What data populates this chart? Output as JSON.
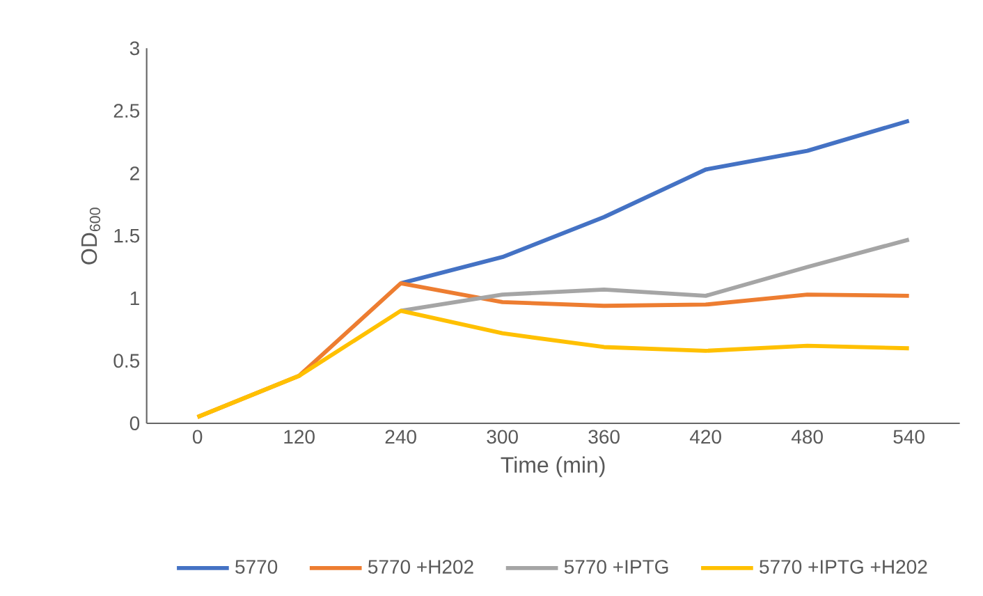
{
  "chart_data": {
    "type": "line",
    "xlabel": "Time (min)",
    "ylabel": "OD$_{600}$",
    "categories": [
      "0",
      "120",
      "240",
      "300",
      "360",
      "420",
      "480",
      "540"
    ],
    "ylim": [
      0,
      3
    ],
    "yticks": [
      0,
      0.5,
      1,
      1.5,
      2,
      2.5,
      3
    ],
    "grid": false,
    "legend": "bottom",
    "marker": "none",
    "line_style": "solid",
    "series": [
      {
        "name": "5770",
        "color": "#4472c4",
        "values": [
          null,
          null,
          1.12,
          1.33,
          1.65,
          2.03,
          2.18,
          2.42
        ]
      },
      {
        "name": "5770 +H202",
        "color": "#ed7d31",
        "values": [
          0.05,
          0.38,
          1.12,
          0.97,
          0.94,
          0.95,
          1.03,
          1.02
        ]
      },
      {
        "name": "5770 +IPTG",
        "color": "#a5a5a5",
        "values": [
          null,
          null,
          0.9,
          1.03,
          1.07,
          1.02,
          1.25,
          1.47
        ]
      },
      {
        "name": "5770 +IPTG +H202",
        "color": "#ffc000",
        "values": [
          0.05,
          0.38,
          0.9,
          0.72,
          0.61,
          0.58,
          0.62,
          0.6
        ]
      }
    ]
  }
}
